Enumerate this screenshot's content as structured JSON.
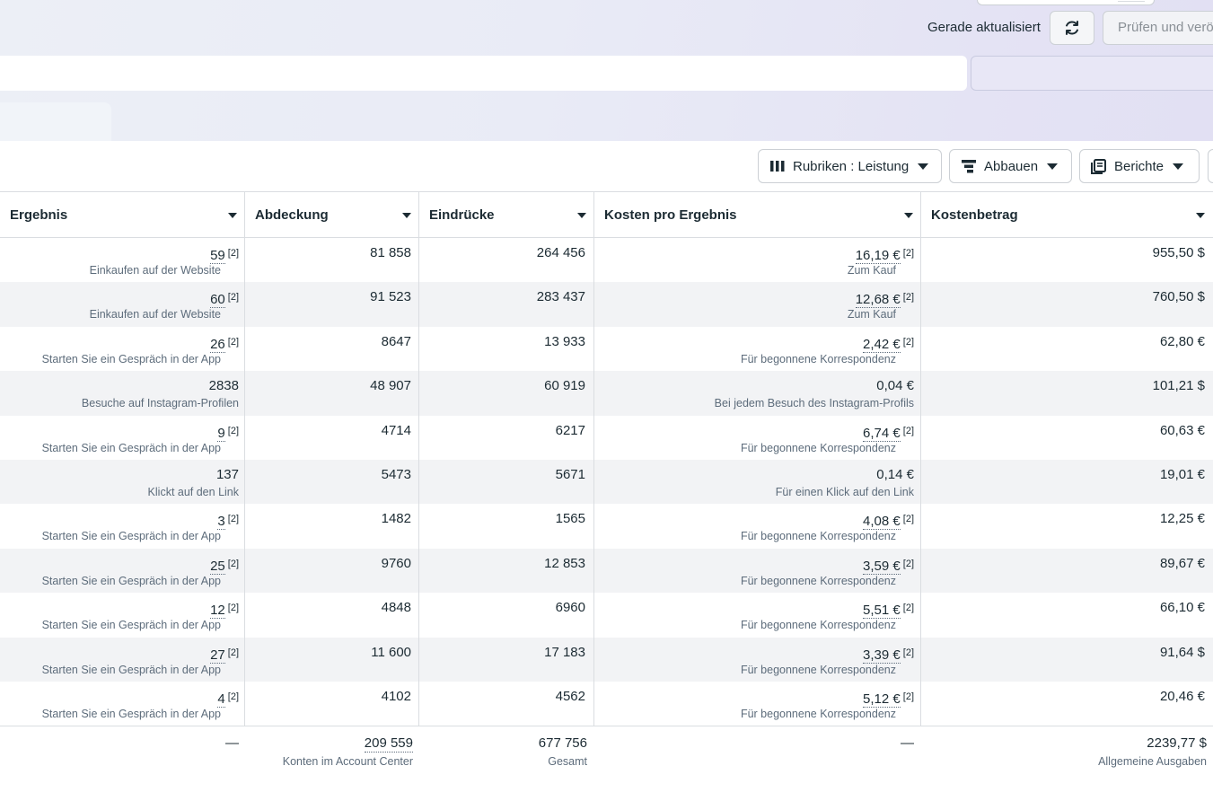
{
  "header": {
    "updated_text": "Gerade aktualisiert",
    "review_button": "Prüfen und verö",
    "refresh_icon": "refresh-icon"
  },
  "toolbar": {
    "columns_button": "Rubriken : Leistung",
    "breakdown_button": "Abbauen",
    "reports_button": "Berichte"
  },
  "table": {
    "columns": [
      "Ergebnis",
      "Abdeckung",
      "Eindrücke",
      "Kosten pro Ergebnis",
      "Kostenbetrag"
    ],
    "rows": [
      {
        "result": "59",
        "result_sup": "[2]",
        "result_sub": "Einkaufen auf der Website",
        "reach": "81 858",
        "impressions": "264 456",
        "cpr": "16,19 €",
        "cpr_sup": "[2]",
        "cpr_sub": "Zum Kauf",
        "spend": "955,50 $"
      },
      {
        "result": "60",
        "result_sup": "[2]",
        "result_sub": "Einkaufen auf der Website",
        "reach": "91 523",
        "impressions": "283 437",
        "cpr": "12,68 €",
        "cpr_sup": "[2]",
        "cpr_sub": "Zum Kauf",
        "spend": "760,50 $"
      },
      {
        "result": "26",
        "result_sup": "[2]",
        "result_sub": "Starten Sie ein Gespräch in der App",
        "reach": "8647",
        "impressions": "13 933",
        "cpr": "2,42 €",
        "cpr_sup": "[2]",
        "cpr_sub": "Für begonnene Korrespondenz",
        "spend": "62,80 €"
      },
      {
        "result": "2838",
        "result_sup": "",
        "result_sub": "Besuche auf Instagram-Profilen",
        "reach": "48 907",
        "impressions": "60 919",
        "cpr": "0,04 €",
        "cpr_sup": "",
        "cpr_sub": "Bei jedem Besuch des Instagram-Profils",
        "spend": "101,21 $"
      },
      {
        "result": "9",
        "result_sup": "[2]",
        "result_sub": "Starten Sie ein Gespräch in der App",
        "reach": "4714",
        "impressions": "6217",
        "cpr": "6,74 €",
        "cpr_sup": "[2]",
        "cpr_sub": "Für begonnene Korrespondenz",
        "spend": "60,63 €"
      },
      {
        "result": "137",
        "result_sup": "",
        "result_sub": "Klickt auf den Link",
        "reach": "5473",
        "impressions": "5671",
        "cpr": "0,14 €",
        "cpr_sup": "",
        "cpr_sub": "Für einen Klick auf den Link",
        "spend": "19,01 €"
      },
      {
        "result": "3",
        "result_sup": "[2]",
        "result_sub": "Starten Sie ein Gespräch in der App",
        "reach": "1482",
        "impressions": "1565",
        "cpr": "4,08 €",
        "cpr_sup": "[2]",
        "cpr_sub": "Für begonnene Korrespondenz",
        "spend": "12,25 €"
      },
      {
        "result": "25",
        "result_sup": "[2]",
        "result_sub": "Starten Sie ein Gespräch in der App",
        "reach": "9760",
        "impressions": "12 853",
        "cpr": "3,59 €",
        "cpr_sup": "[2]",
        "cpr_sub": "Für begonnene Korrespondenz",
        "spend": "89,67 €"
      },
      {
        "result": "12",
        "result_sup": "[2]",
        "result_sub": "Starten Sie ein Gespräch in der App",
        "reach": "4848",
        "impressions": "6960",
        "cpr": "5,51 €",
        "cpr_sup": "[2]",
        "cpr_sub": "Für begonnene Korrespondenz",
        "spend": "66,10 €"
      },
      {
        "result": "27",
        "result_sup": "[2]",
        "result_sub": "Starten Sie ein Gespräch in der App",
        "reach": "11 600",
        "impressions": "17 183",
        "cpr": "3,39 €",
        "cpr_sup": "[2]",
        "cpr_sub": "Für begonnene Korrespondenz",
        "spend": "91,64 $"
      },
      {
        "result": "4",
        "result_sup": "[2]",
        "result_sub": "Starten Sie ein Gespräch in der App",
        "reach": "4102",
        "impressions": "4562",
        "cpr": "5,12 €",
        "cpr_sup": "[2]",
        "cpr_sub": "Für begonnene Korrespondenz",
        "spend": "20,46 €"
      }
    ],
    "totals": {
      "result": "—",
      "reach": "209 559",
      "reach_sub": "Konten im Account Center",
      "impressions": "677 756",
      "impressions_sub": "Gesamt",
      "cpr": "—",
      "spend": "2239,77 $",
      "spend_sub": "Allgemeine Ausgaben"
    }
  }
}
